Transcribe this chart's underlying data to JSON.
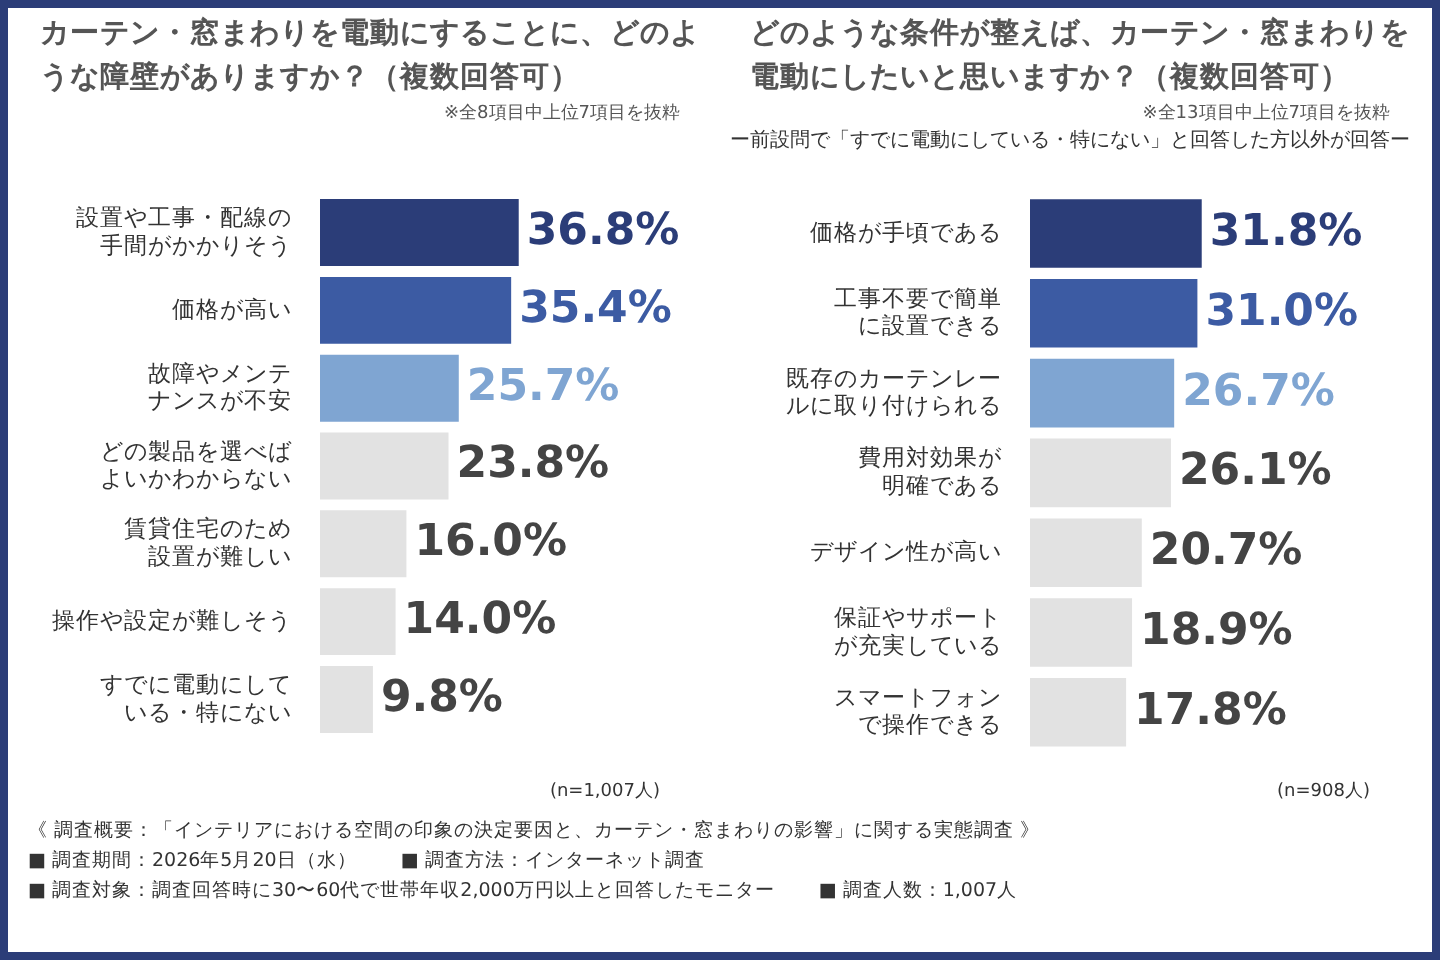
{
  "chart_data": [
    {
      "type": "bar",
      "orientation": "horizontal",
      "title": "カーテン・窓まわりを電動にすることに、どのような障壁がありますか？（複数回答可）",
      "subtitle": "※全8項目中上位7項目を抜粋",
      "categories": [
        "設置や工事・配線の手間がかかりそう",
        "価格が高い",
        "故障やメンテナンスが不安",
        "どの製品を選べばよいかわからない",
        "賃貸住宅のため設置が難しい",
        "操作や設定が難しそう",
        "すでに電動にしている・特にない"
      ],
      "values": [
        36.8,
        35.4,
        25.7,
        23.8,
        16.0,
        14.0,
        9.8
      ],
      "value_labels": [
        "36.8%",
        "35.4%",
        "25.7%",
        "23.8%",
        "16.0%",
        "14.0%",
        "9.8%"
      ],
      "colors": [
        "#2b3d78",
        "#3c5ba3",
        "#7fa5d2",
        "#e2e2e2",
        "#e2e2e2",
        "#e2e2e2",
        "#e2e2e2"
      ],
      "legend": false,
      "annotations": [
        "(n=1,007人)"
      ]
    },
    {
      "type": "bar",
      "orientation": "horizontal",
      "title": "どのような条件が整えば、カーテン・窓まわりを電動にしたいと思いますか？（複数回答可）",
      "subtitle": "※全13項目中上位7項目を抜粋",
      "categories": [
        "価格が手頃である",
        "工事不要で簡単に設置できる",
        "既存のカーテンレールに取り付けられる",
        "費用対効果が明確である",
        "デザイン性が高い",
        "保証やサポートが充実している",
        "スマートフォンで操作できる"
      ],
      "values": [
        31.8,
        31.0,
        26.7,
        26.1,
        20.7,
        18.9,
        17.8
      ],
      "value_labels": [
        "31.8%",
        "31.0%",
        "26.7%",
        "26.1%",
        "20.7%",
        "18.9%",
        "17.8%"
      ],
      "colors": [
        "#2b3d78",
        "#3c5ba3",
        "#7fa5d2",
        "#e2e2e2",
        "#e2e2e2",
        "#e2e2e2",
        "#e2e2e2"
      ],
      "legend": false,
      "annotations": [
        "ー前設問で「すでに電動にしている・特にない」と回答した方以外が回答ー",
        "(n=908人)"
      ]
    },
    {
      "type": "other",
      "annotations": [
        "《 調査概要：「インテリアにおける空間の印象の決定要因と、カーテン・窓まわりの影響」に関する実態調査 》",
        "■ 調査期間：2026年5月20日（水）",
        "■ 調査方法：インターネット調査",
        "■ 調査対象：調査回答時に30〜60代で世帯年収2,000万円以上と回答したモニター",
        "■ 調査人数：1,007人"
      ]
    }
  ]
}
